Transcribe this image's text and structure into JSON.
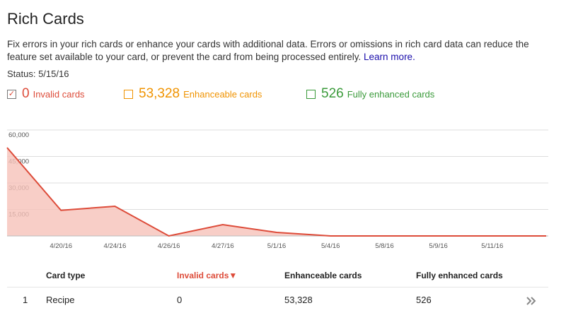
{
  "header": {
    "title": "Rich Cards",
    "description": "Fix errors in your rich cards or enhance your cards with additional data. Errors or omissions in rich card data can reduce the feature set available to your card, or prevent the card from being processed entirely.",
    "link": "Learn more.",
    "status": "Status: 5/15/16"
  },
  "toggles": [
    {
      "count": "0",
      "label": "Invalid cards",
      "color": "#dd4b39",
      "checked": true
    },
    {
      "count": "53,328",
      "label": "Enhanceable cards",
      "color": "#f09300",
      "checked": false
    },
    {
      "count": "526",
      "label": "Fully enhanced cards",
      "color": "#3a9a3a",
      "checked": false
    }
  ],
  "chart_data": {
    "type": "area",
    "color": "#dd4b39",
    "fill": "#f6c2b9",
    "categories": [
      null,
      "4/20/16",
      "4/24/16",
      "4/26/16",
      "4/27/16",
      "5/1/16",
      "5/4/16",
      "5/8/16",
      "5/9/16",
      "5/11/16",
      null
    ],
    "values": [
      50000,
      14500,
      16800,
      0,
      6400,
      2000,
      0,
      0,
      0,
      0,
      0
    ],
    "ylim": [
      0,
      60000
    ],
    "yticks": [
      {
        "value": 15000,
        "label": "15,000"
      },
      {
        "value": 30000,
        "label": "30,000"
      },
      {
        "value": 45000,
        "label": "45,000"
      },
      {
        "value": 60000,
        "label": "60,000"
      }
    ],
    "grid": true
  },
  "table": {
    "columns": [
      "Card type",
      "Invalid cards▼",
      "Enhanceable cards",
      "Fully enhanced cards"
    ],
    "rows": [
      [
        "1",
        "Recipe",
        "0",
        "53,328",
        "526"
      ]
    ]
  }
}
